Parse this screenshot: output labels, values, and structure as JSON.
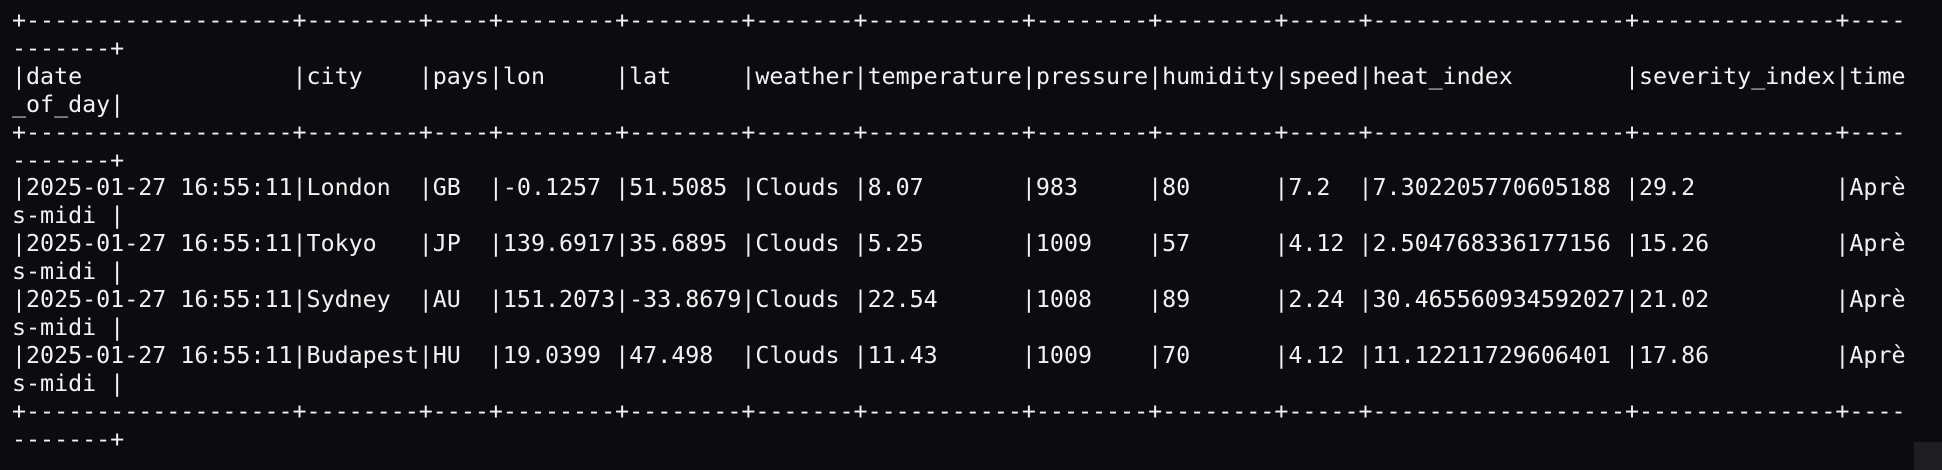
{
  "border": "+-------------------+--------+----+--------+--------+-------+-----------+--------+--------+-----+------------------+--------------+-----------+",
  "header": "|date               |city    |pays|lon     |lat     |weather|temperature|pressure|humidity|speed|heat_index        |severity_index|time_of_day|",
  "rows": [
    "|2025-01-27 16:55:11|London  |GB  |-0.1257 |51.5085 |Clouds |8.07       |983     |80      |7.2  |7.302205770605188 |29.2          |Après-midi |",
    "|2025-01-27 16:55:11|Tokyo   |JP  |139.6917|35.6895 |Clouds |5.25       |1009    |57      |4.12 |2.504768336177156 |15.26         |Après-midi |",
    "|2025-01-27 16:55:11|Sydney  |AU  |151.2073|-33.8679|Clouds |22.54      |1008    |89      |2.24 |30.465560934592027|21.02         |Après-midi |",
    "|2025-01-27 16:55:11|Budapest|HU  |19.0399 |47.498  |Clouds |11.43      |1009    |70      |4.12 |11.12211729606401 |17.86         |Après-midi |"
  ]
}
